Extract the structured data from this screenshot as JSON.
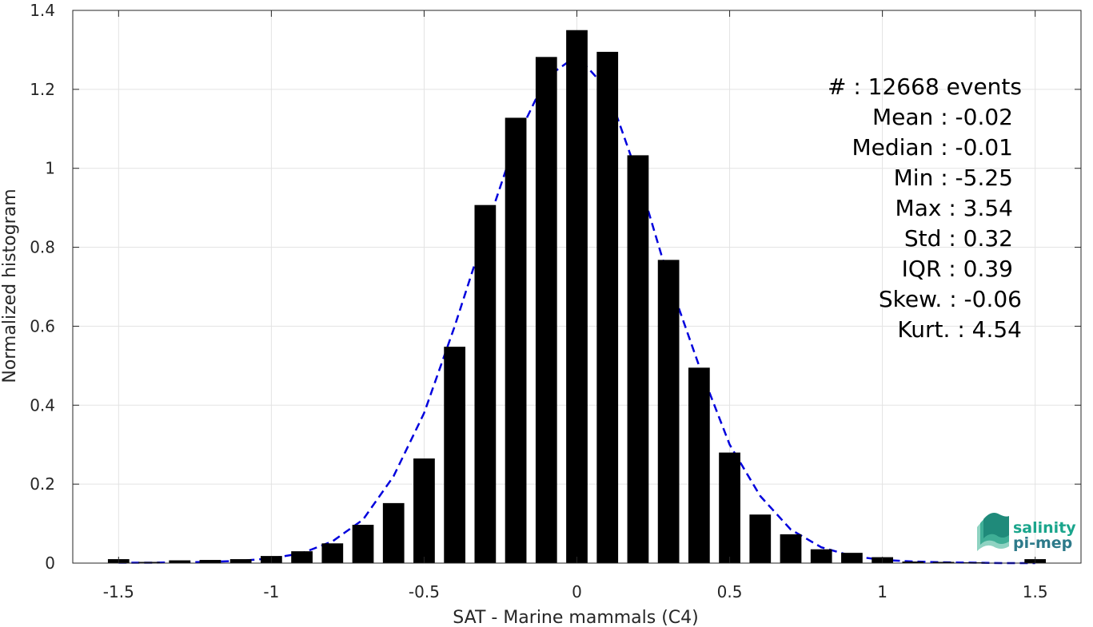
{
  "chart_data": {
    "type": "bar",
    "xlabel": "SAT - Marine mammals (C4)",
    "ylabel": "Normalized histogram",
    "xlim": [
      -1.65,
      1.65
    ],
    "ylim": [
      0,
      1.4
    ],
    "xticks": [
      -1.5,
      -1,
      -0.5,
      0,
      0.5,
      1,
      1.5
    ],
    "xtick_labels": [
      "-1.5",
      "-1",
      "-0.5",
      "0",
      "0.5",
      "1",
      "1.5"
    ],
    "yticks": [
      0,
      0.2,
      0.4,
      0.6,
      0.8,
      1,
      1.2,
      1.4
    ],
    "ytick_labels": [
      "0",
      "0.2",
      "0.4",
      "0.6",
      "0.8",
      "1",
      "1.2",
      "1.4"
    ],
    "grid": true,
    "bar_width": 0.07,
    "bars": {
      "x": [
        -1.5,
        -1.4,
        -1.3,
        -1.2,
        -1.1,
        -1.0,
        -0.9,
        -0.8,
        -0.7,
        -0.6,
        -0.5,
        -0.4,
        -0.3,
        -0.2,
        -0.1,
        0.0,
        0.1,
        0.2,
        0.3,
        0.4,
        0.5,
        0.6,
        0.7,
        0.8,
        0.9,
        1.0,
        1.1,
        1.2,
        1.3,
        1.4,
        1.5
      ],
      "y": [
        0.01,
        0.003,
        0.007,
        0.008,
        0.01,
        0.018,
        0.03,
        0.05,
        0.097,
        0.152,
        0.265,
        0.548,
        0.907,
        1.128,
        1.282,
        1.35,
        1.295,
        1.033,
        0.768,
        0.495,
        0.28,
        0.123,
        0.073,
        0.035,
        0.026,
        0.015,
        0.004,
        0.003,
        0.002,
        0.001,
        0.01
      ],
      "color": "#000000"
    },
    "fit": {
      "x": [
        -1.5,
        -1.4,
        -1.3,
        -1.2,
        -1.1,
        -1.0,
        -0.9,
        -0.8,
        -0.7,
        -0.6,
        -0.5,
        -0.4,
        -0.3,
        -0.2,
        -0.1,
        0.0,
        0.1,
        0.2,
        0.3,
        0.4,
        0.5,
        0.6,
        0.7,
        0.8,
        0.9,
        1.0,
        1.1,
        1.2,
        1.3,
        1.4,
        1.5
      ],
      "y": [
        0.001,
        0.001,
        0.002,
        0.003,
        0.006,
        0.012,
        0.025,
        0.055,
        0.11,
        0.22,
        0.38,
        0.6,
        0.84,
        1.07,
        1.23,
        1.285,
        1.2,
        0.98,
        0.72,
        0.5,
        0.3,
        0.17,
        0.085,
        0.04,
        0.018,
        0.008,
        0.004,
        0.002,
        0.001,
        0.0,
        0.0
      ],
      "color": "#0000dd",
      "style": "dashed"
    }
  },
  "stats": [
    "#  : 12668 events",
    "Mean : -0.02",
    "Median : -0.01",
    "Min : -5.25",
    "Max : 3.54",
    "Std : 0.32",
    "IQR : 0.39",
    "Skew. : -0.06",
    "Kurt. : 4.54"
  ],
  "logo": {
    "line1": "salinity",
    "line2": "pi-mep",
    "color1": "#1aa58c",
    "color2": "#2d7a8a"
  }
}
